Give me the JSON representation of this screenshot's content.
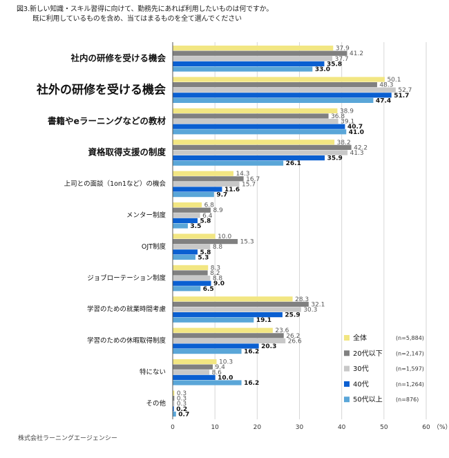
{
  "title_line1": "図3.新しい知識・スキル習得に向けて、勤務先にあれば利用したいものは何ですか。",
  "title_line2": "既に利用しているものを含め、当てはまるものを全て選んでください",
  "footer": "株式会社ラーニングエージェンシー",
  "chart_data": {
    "type": "bar",
    "orientation": "horizontal",
    "title": "図3.新しい知識・スキル習得に向けて、勤務先にあれば利用したいものは何ですか。既に利用しているものを含め、当てはまるものを全て選んでください",
    "xlabel": "",
    "unit_label": "（%）",
    "xlim": [
      0,
      60
    ],
    "xticks": [
      "0",
      "10",
      "20",
      "30",
      "40",
      "50",
      "60"
    ],
    "grid": true,
    "legend_position": "bottom-right",
    "categories": [
      "社内の研修を受ける機会",
      "社外の研修を受ける機会",
      "書籍やeラーニングなどの教材",
      "資格取得支援の制度",
      "上司との面談（1on1など）の機会",
      "メンター制度",
      "OJT制度",
      "ジョブローテーション制度",
      "学習のための就業時間考慮",
      "学習のための休暇取得制度",
      "特にない",
      "その他"
    ],
    "emphasis": [
      "large",
      "xlarge",
      "large",
      "large",
      "normal",
      "normal",
      "normal",
      "normal",
      "normal",
      "normal",
      "normal",
      "normal"
    ],
    "series": [
      {
        "name": "全体",
        "n": "(n=5,884)",
        "color": "#f2e682",
        "values": [
          37.9,
          50.1,
          38.9,
          38.2,
          14.3,
          6.8,
          10.0,
          8.3,
          28.3,
          23.6,
          10.3,
          0.3
        ]
      },
      {
        "name": "20代以下",
        "n": "(n=2,147)",
        "color": "#808080",
        "values": [
          41.2,
          48.3,
          36.8,
          42.2,
          16.7,
          8.9,
          15.3,
          8.2,
          32.1,
          26.2,
          9.4,
          0.3
        ]
      },
      {
        "name": "30代",
        "n": "(n=1,597)",
        "color": "#c8c8c8",
        "values": [
          37.7,
          52.7,
          39.1,
          41.3,
          15.7,
          6.4,
          8.8,
          8.8,
          30.3,
          26.6,
          8.6,
          0.3
        ]
      },
      {
        "name": "40代",
        "n": "(n=1,264)",
        "color": "#0a5fd1",
        "values": [
          35.8,
          51.7,
          40.7,
          35.9,
          11.6,
          5.8,
          5.8,
          9.0,
          25.9,
          20.3,
          10.0,
          0.2
        ]
      },
      {
        "name": "50代以上",
        "n": "(n=876)",
        "color": "#5aa6d8",
        "values": [
          33.0,
          47.4,
          41.0,
          26.1,
          9.7,
          3.5,
          5.3,
          6.5,
          19.1,
          16.2,
          16.2,
          0.7
        ]
      }
    ]
  }
}
